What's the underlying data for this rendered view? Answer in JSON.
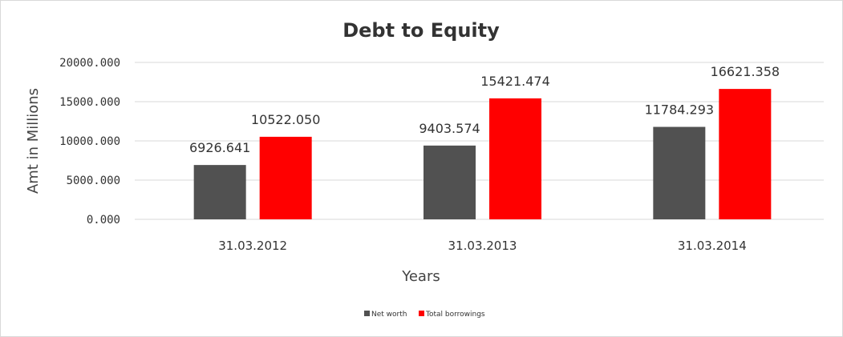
{
  "chart_data": {
    "type": "bar",
    "title": "Debt to Equity",
    "xlabel": "Years",
    "ylabel": "Amt in Millions",
    "categories": [
      "31.03.2012",
      "31.03.2013",
      "31.03.2014"
    ],
    "series": [
      {
        "name": "Net worth",
        "values": [
          6926.641,
          9403.574,
          11784.293
        ],
        "color": "#515151"
      },
      {
        "name": "Total borrowings",
        "values": [
          10522.05,
          15421.474,
          16621.358
        ],
        "color": "#ff0000"
      }
    ],
    "data_labels": [
      [
        "6926.641",
        "9403.574",
        "11784.293"
      ],
      [
        "10522.050",
        "15421.474",
        "16621.358"
      ]
    ],
    "yticks": [
      0,
      5000,
      10000,
      15000,
      20000
    ],
    "ytick_labels": [
      "0.000",
      "5000.000",
      "10000.000",
      "15000.000",
      "20000.000"
    ],
    "ylim": [
      0,
      20000
    ],
    "grid": true,
    "legend_position": "bottom"
  }
}
